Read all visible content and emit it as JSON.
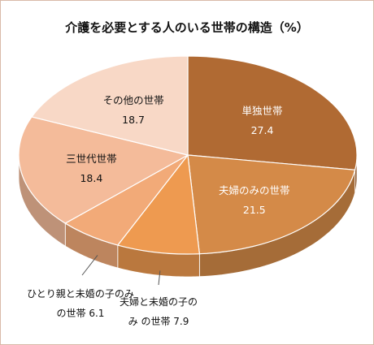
{
  "title": "介護を必要とする人のいる世帯の構造（%）",
  "chart_data": {
    "type": "pie",
    "title": "介護を必要とする人のいる世帯の構造（%）",
    "slices": [
      {
        "label": "単独世帯",
        "value": 27.4,
        "value_text": "27.4",
        "color": "#b06a33",
        "label_color": "#ffffff"
      },
      {
        "label": "夫婦のみの世帯",
        "value": 21.5,
        "value_text": "21.5",
        "color": "#d48a48",
        "label_color": "#ffffff"
      },
      {
        "label_lines": [
          "夫婦と未婚の子の",
          "み の世帯 7.9"
        ],
        "label": "夫婦と未婚の子のみの世帯",
        "value": 7.9,
        "value_text": "7.9",
        "color": "#ee9a50"
      },
      {
        "label_lines": [
          "ひとり親と未婚の子のみ",
          "の世帯 6.1"
        ],
        "label": "ひとり親と未婚の子のみの世帯",
        "value": 6.1,
        "value_text": "6.1",
        "color": "#f2aa78"
      },
      {
        "label": "三世代世帯",
        "value": 18.4,
        "value_text": "18.4",
        "color": "#f4bb9a",
        "label_color": "#111111"
      },
      {
        "label": "その他の世帯",
        "value": 18.7,
        "value_text": "18.7",
        "color": "#f8d8c6",
        "label_color": "#111111"
      }
    ],
    "legend": "none"
  }
}
